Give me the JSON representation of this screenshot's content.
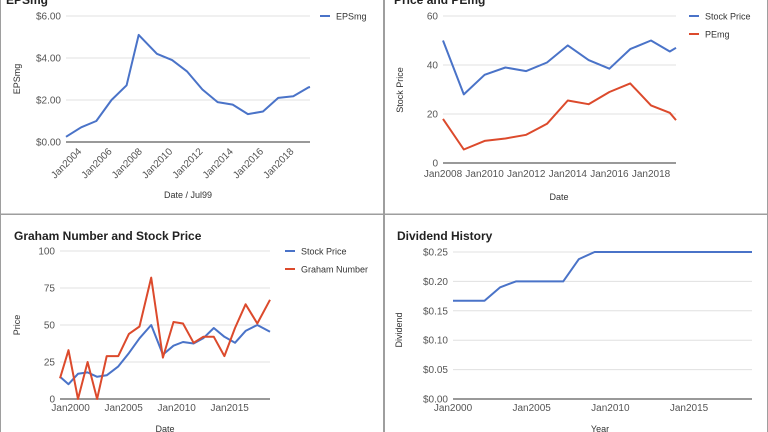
{
  "chart_data": [
    {
      "id": "eps",
      "type": "line",
      "title": "EPSmg",
      "xlabel": "Date / Jul99",
      "ylabel": "EPSmg",
      "xlim": [
        2003.2,
        2019.3
      ],
      "ylim": [
        0,
        6
      ],
      "y_ticks": [
        0,
        2,
        4,
        6
      ],
      "y_tick_labels": [
        "$0.00",
        "$2.00",
        "$4.00",
        "$6.00"
      ],
      "x_ticks": [
        2004,
        2006,
        2008,
        2010,
        2012,
        2014,
        2016,
        2018
      ],
      "x_tick_labels": [
        "Jan2004",
        "Jan2006",
        "Jan2008",
        "Jan2010",
        "Jan2012",
        "Jan2014",
        "Jan2016",
        "Jan2018"
      ],
      "x_tick_rotation": -45,
      "legend": "right",
      "series": [
        {
          "name": "EPSmg",
          "color": "#4a73c8",
          "x": [
            2003.2,
            2004.2,
            2005.2,
            2006.2,
            2007.2,
            2008.0,
            2009.2,
            2010.2,
            2011.2,
            2012.2,
            2013.2,
            2014.2,
            2015.2,
            2016.2,
            2017.2,
            2018.2,
            2019.2,
            2019.3
          ],
          "values": [
            0.25,
            0.7,
            1.0,
            2.0,
            2.7,
            5.1,
            4.2,
            3.9,
            3.35,
            2.5,
            1.9,
            1.78,
            1.33,
            1.45,
            2.1,
            2.18,
            2.6,
            2.62
          ]
        }
      ]
    },
    {
      "id": "price",
      "type": "line",
      "title": "Price and PEmg",
      "xlabel": "Date",
      "ylabel": "Stock Price",
      "xlim": [
        2008,
        2019.2
      ],
      "ylim": [
        0,
        60
      ],
      "y_ticks": [
        0,
        20,
        40,
        60
      ],
      "y_tick_labels": [
        "0",
        "20",
        "40",
        "60"
      ],
      "x_ticks": [
        2008,
        2010,
        2012,
        2014,
        2016,
        2018
      ],
      "x_tick_labels": [
        "Jan2008",
        "Jan2010",
        "Jan2012",
        "Jan2014",
        "Jan2016",
        "Jan2018"
      ],
      "x_tick_rotation": 0,
      "legend": "right",
      "series": [
        {
          "name": "Stock Price",
          "color": "#4a73c8",
          "x": [
            2008,
            2009,
            2010,
            2011,
            2012,
            2013,
            2014,
            2015,
            2016,
            2017,
            2018,
            2018.9,
            2019.2
          ],
          "values": [
            50,
            28,
            36,
            39,
            37.5,
            41,
            48,
            42,
            38.5,
            46.5,
            50,
            45.5,
            47
          ]
        },
        {
          "name": "PEmg",
          "color": "#dc4a2c",
          "x": [
            2008,
            2009,
            2010,
            2011,
            2012,
            2013,
            2014,
            2015,
            2016,
            2017,
            2018,
            2018.9,
            2019.2
          ],
          "values": [
            18,
            5.5,
            9,
            10,
            11.5,
            16,
            25.5,
            24,
            29,
            32.5,
            23.5,
            20.5,
            17.5
          ]
        }
      ]
    },
    {
      "id": "graham",
      "type": "line",
      "title": "Graham Number and Stock Price",
      "xlabel": "Date",
      "ylabel": "Price",
      "xlim": [
        1999,
        2018.8
      ],
      "ylim": [
        0,
        100
      ],
      "y_ticks": [
        0,
        25,
        50,
        75,
        100
      ],
      "y_tick_labels": [
        "0",
        "25",
        "50",
        "75",
        "100"
      ],
      "x_ticks": [
        2000,
        2005,
        2010,
        2015
      ],
      "x_tick_labels": [
        "Jan2000",
        "Jan2005",
        "Jan2010",
        "Jan2015"
      ],
      "x_tick_rotation": 0,
      "legend": "right",
      "series": [
        {
          "name": "Stock Price",
          "color": "#4a73c8",
          "x": [
            1999,
            1999.8,
            2000.7,
            2001.6,
            2002.5,
            2003.4,
            2004.5,
            2005.5,
            2006.5,
            2007.6,
            2008.7,
            2009.7,
            2010.6,
            2011.6,
            2012.5,
            2013.5,
            2014.5,
            2015.5,
            2016.5,
            2017.6,
            2018.8
          ],
          "values": [
            15,
            10,
            17,
            18,
            15,
            16,
            22,
            31,
            41,
            50,
            30,
            36,
            38.5,
            37.5,
            41,
            48,
            42,
            38,
            46,
            50,
            45.5
          ]
        },
        {
          "name": "Graham Number",
          "color": "#dc4a2c",
          "x": [
            1999,
            1999.8,
            2000.7,
            2001.6,
            2002.5,
            2003.4,
            2004.5,
            2005.5,
            2006.5,
            2007.6,
            2008.7,
            2009.7,
            2010.6,
            2011.6,
            2012.5,
            2013.5,
            2014.5,
            2015.5,
            2016.5,
            2017.6,
            2018.8
          ],
          "values": [
            14,
            33,
            0,
            25,
            0,
            29,
            29,
            44,
            49,
            82,
            28,
            52,
            51,
            38,
            42,
            42,
            29,
            48,
            64,
            51,
            67
          ]
        }
      ]
    },
    {
      "id": "dividend",
      "type": "line",
      "title": "Dividend History",
      "xlabel": "Year",
      "ylabel": "Dividend",
      "xlim": [
        2000,
        2019
      ],
      "ylim": [
        0,
        0.25
      ],
      "y_ticks": [
        0,
        0.05,
        0.1,
        0.15,
        0.2,
        0.25
      ],
      "y_tick_labels": [
        "$0.00",
        "$0.05",
        "$0.10",
        "$0.15",
        "$0.20",
        "$0.25"
      ],
      "x_ticks": [
        2000,
        2005,
        2010,
        2015
      ],
      "x_tick_labels": [
        "Jan2000",
        "Jan2005",
        "Jan2010",
        "Jan2015"
      ],
      "x_tick_rotation": 0,
      "legend": "none",
      "series": [
        {
          "name": "",
          "color": "#4a73c8",
          "x": [
            2000,
            2002,
            2003,
            2004,
            2005.5,
            2007,
            2008,
            2009,
            2010,
            2019
          ],
          "values": [
            0.167,
            0.167,
            0.19,
            0.2,
            0.2,
            0.2,
            0.238,
            0.25,
            0.25,
            0.25
          ]
        }
      ]
    }
  ]
}
